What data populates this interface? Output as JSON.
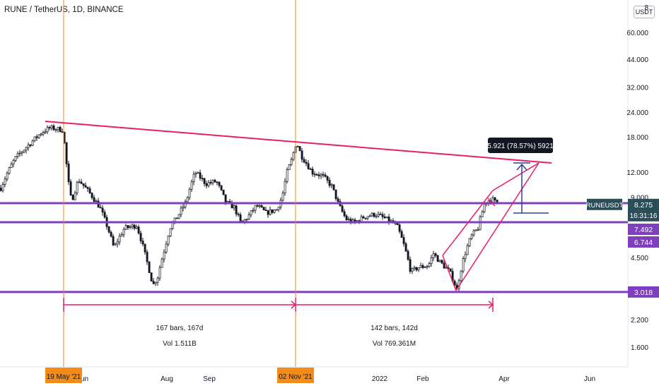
{
  "header": {
    "title": "RUNE / TetherUS, 1D, BINANCE",
    "currency": "USDT",
    "top_tick": "8"
  },
  "chart_data": {
    "type": "candlestick",
    "symbol": "RUNEUSDT",
    "y_scale": "log",
    "y_ticks": [
      "60.000",
      "44.000",
      "32.000",
      "24.000",
      "18.000",
      "12.000",
      "9.000",
      "4.500",
      "2.200",
      "1.600"
    ],
    "x_ticks": [
      "Jun",
      "Aug",
      "Sep",
      "2022",
      "Feb",
      "Apr",
      "Jun"
    ],
    "last_price": "8.275",
    "countdown": "16:31:16",
    "levels": [
      {
        "label": "7.492",
        "value": 7.492,
        "color": "#7e3fbf"
      },
      {
        "label": "6.744",
        "value": 6.744,
        "color": "#7e3fbf"
      },
      {
        "label": "3.018",
        "value": 3.018,
        "color": "#7e3fbf"
      }
    ],
    "vertical_markers": [
      {
        "label": "19 May '21",
        "color": "#f28b18"
      },
      {
        "label": "02 Nov '21",
        "color": "#f28b18"
      }
    ],
    "ranges": [
      {
        "bars": "167 bars, 167d",
        "vol": "Vol 1.511B"
      },
      {
        "bars": "142 bars, 142d",
        "vol": "Vol 769.361M"
      }
    ],
    "measure": {
      "text": "5.921 (78.57%) 5921"
    },
    "colors": {
      "up": "#26a69a",
      "down": "#ef5350",
      "candle": "#131722",
      "trend": "#e91e63",
      "level": "#7e3fbf",
      "marker": "#f28b18",
      "measure": "#2d3ea8",
      "axis_text": "#131722",
      "grid": "#f0f3fa"
    }
  }
}
